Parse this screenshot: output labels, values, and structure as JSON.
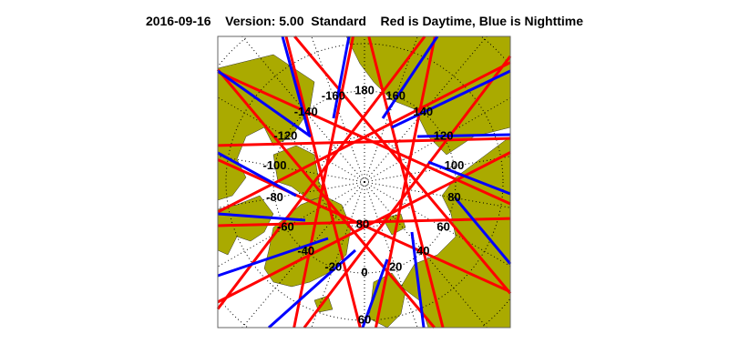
{
  "header": {
    "date": "2016-09-16",
    "version": "Version: 5.00",
    "product": "Standard",
    "legend_note": "Red is Daytime, Blue is Nighttime"
  },
  "map": {
    "projection": "north polar stereographic",
    "longitude_labels": [
      "0",
      "20",
      "40",
      "60",
      "80",
      "100",
      "120",
      "140",
      "160",
      "180",
      "-160",
      "-140",
      "-120",
      "-100",
      "-80",
      "-60",
      "-40",
      "-20"
    ],
    "latitude_labels": [
      "80",
      "60"
    ],
    "colors": {
      "land": "#aaaa00",
      "daytime": "#ff0000",
      "nighttime": "#0000ff",
      "background": "#ffffff"
    }
  }
}
